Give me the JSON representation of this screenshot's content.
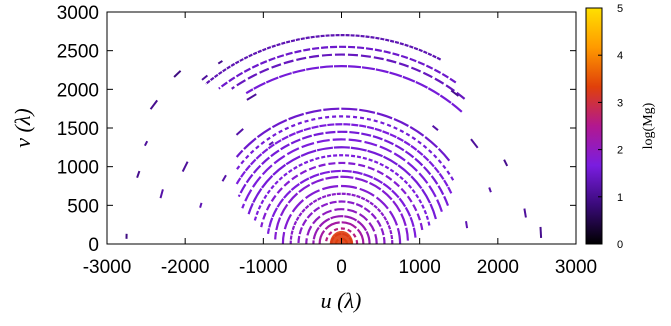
{
  "chart_data": {
    "type": "scatter",
    "subtype": "uv-coverage heatmap",
    "title": "",
    "xlabel": "u (λ)",
    "ylabel": "v (λ)",
    "xlim": [
      -3000,
      3000
    ],
    "ylim": [
      0,
      3000
    ],
    "x_ticks": [
      "-3000",
      "-2000",
      "-1000",
      "0",
      "1000",
      "2000",
      "3000"
    ],
    "y_ticks": [
      "0",
      "500",
      "1000",
      "1500",
      "2000",
      "2500",
      "3000"
    ],
    "grid": false,
    "colorbar": {
      "label": "log(Mg)",
      "range": [
        0,
        5
      ],
      "ticks": [
        "0",
        "1",
        "2",
        "3",
        "4",
        "5"
      ],
      "colormap": [
        "#000000",
        "#3a0a7a",
        "#7a1de0",
        "#b21890",
        "#e0400a",
        "#ff9a00",
        "#ffe000"
      ]
    },
    "tracks": [
      {
        "radius": 2700,
        "start_deg": 62,
        "end_deg": 130,
        "value": 1.3
      },
      {
        "radius": 2550,
        "start_deg": 55,
        "end_deg": 128,
        "value": 1.5
      },
      {
        "radius": 2450,
        "start_deg": 50,
        "end_deg": 125,
        "value": 1.4
      },
      {
        "radius": 2300,
        "start_deg": 48,
        "end_deg": 122,
        "value": 1.6
      },
      {
        "radius": 1750,
        "start_deg": 38,
        "end_deg": 140,
        "value": 1.5
      },
      {
        "radius": 1650,
        "start_deg": 30,
        "end_deg": 145,
        "value": 1.6
      },
      {
        "radius": 1550,
        "start_deg": 25,
        "end_deg": 150,
        "value": 1.7
      },
      {
        "radius": 1450,
        "start_deg": 20,
        "end_deg": 155,
        "value": 1.6
      },
      {
        "radius": 1350,
        "start_deg": 18,
        "end_deg": 160,
        "value": 1.7
      },
      {
        "radius": 1250,
        "start_deg": 15,
        "end_deg": 162,
        "value": 1.6
      },
      {
        "radius": 1150,
        "start_deg": 12,
        "end_deg": 165,
        "value": 1.7
      },
      {
        "radius": 1050,
        "start_deg": 10,
        "end_deg": 168,
        "value": 1.8
      },
      {
        "radius": 950,
        "start_deg": 5,
        "end_deg": 172,
        "value": 1.7
      },
      {
        "radius": 850,
        "start_deg": 3,
        "end_deg": 176,
        "value": 1.8
      },
      {
        "radius": 750,
        "start_deg": 0,
        "end_deg": 180,
        "value": 1.8
      },
      {
        "radius": 650,
        "start_deg": 0,
        "end_deg": 180,
        "value": 1.9
      },
      {
        "radius": 550,
        "start_deg": 0,
        "end_deg": 180,
        "value": 1.9
      },
      {
        "radius": 450,
        "start_deg": 0,
        "end_deg": 180,
        "value": 2.0
      },
      {
        "radius": 360,
        "start_deg": 0,
        "end_deg": 180,
        "value": 2.1
      },
      {
        "radius": 280,
        "start_deg": 0,
        "end_deg": 180,
        "value": 2.3
      },
      {
        "radius": 200,
        "start_deg": 0,
        "end_deg": 180,
        "value": 2.6
      },
      {
        "radius": 130,
        "start_deg": 0,
        "end_deg": 180,
        "value": 3.0
      },
      {
        "radius": 70,
        "start_deg": 0,
        "end_deg": 180,
        "value": 3.4
      }
    ],
    "scattered_segments": [
      {
        "u": -1550,
        "v": 2350,
        "value": 1.0
      },
      {
        "u": -1750,
        "v": 2150,
        "value": 1.1
      },
      {
        "u": -2100,
        "v": 2200,
        "value": 0.9
      },
      {
        "u": -2400,
        "v": 1800,
        "value": 1.0
      },
      {
        "u": -2500,
        "v": 1300,
        "value": 1.1
      },
      {
        "u": -2600,
        "v": 900,
        "value": 1.0
      },
      {
        "u": -2300,
        "v": 650,
        "value": 1.2
      },
      {
        "u": -2000,
        "v": 1000,
        "value": 1.1
      },
      {
        "u": -1800,
        "v": 500,
        "value": 1.3
      },
      {
        "u": -1500,
        "v": 850,
        "value": 1.2
      },
      {
        "u": -1300,
        "v": 1450,
        "value": 1.2
      },
      {
        "u": -1150,
        "v": 1900,
        "value": 1.1
      },
      {
        "u": -900,
        "v": 1300,
        "value": 1.3
      },
      {
        "u": 1200,
        "v": 1500,
        "value": 1.2
      },
      {
        "u": 1450,
        "v": 1950,
        "value": 1.0
      },
      {
        "u": 1700,
        "v": 1300,
        "value": 1.1
      },
      {
        "u": 1900,
        "v": 700,
        "value": 1.2
      },
      {
        "u": 2100,
        "v": 1050,
        "value": 1.0
      },
      {
        "u": 2350,
        "v": 400,
        "value": 1.1
      },
      {
        "u": 2550,
        "v": 150,
        "value": 1.0
      },
      {
        "u": -2750,
        "v": 100,
        "value": 0.9
      },
      {
        "u": 1600,
        "v": 250,
        "value": 1.3
      }
    ]
  }
}
